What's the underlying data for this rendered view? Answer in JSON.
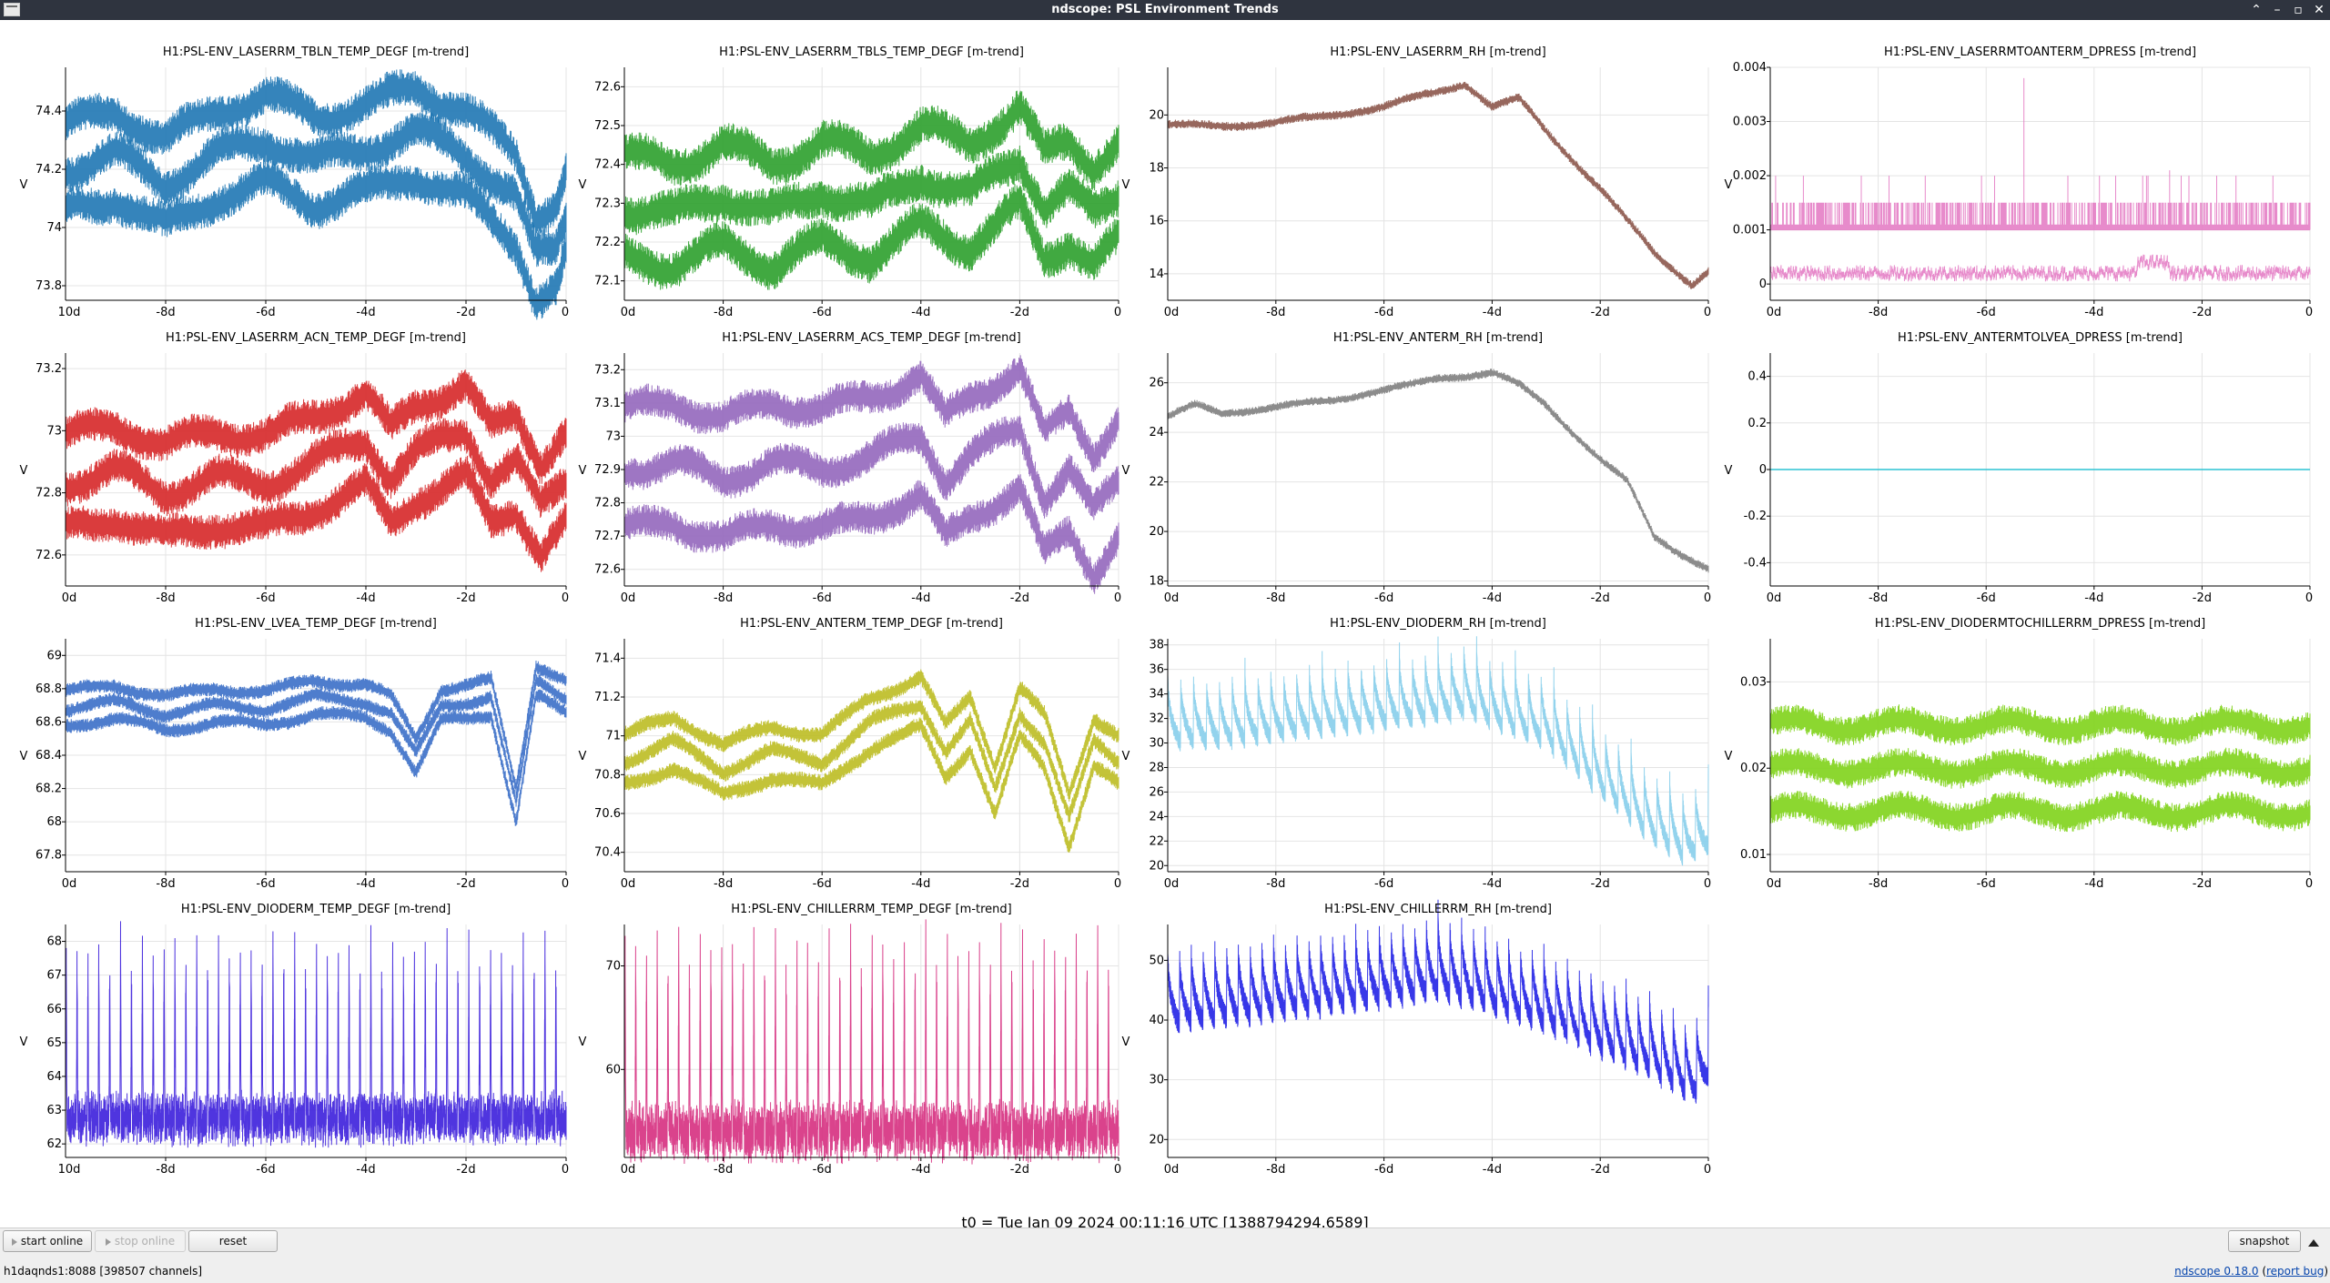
{
  "window": {
    "title": "ndscope: PSL Environment Trends"
  },
  "plots": [
    {
      "title": "H1:PSL-ENV_LASERRM_TBLN_TEMP_DEGF [m-trend]",
      "ylabel": "V",
      "color": "#1f77b4",
      "ylim": [
        73.75,
        74.55
      ],
      "yticks": [
        "73.8",
        "74",
        "74.2",
        "74.4"
      ],
      "ytickvals": [
        73.8,
        74.0,
        74.2,
        74.4
      ],
      "xfirst": "10d",
      "mode": "band",
      "knots": [
        [
          -10,
          74.35
        ],
        [
          -9,
          74.4
        ],
        [
          -8,
          74.3
        ],
        [
          -7,
          74.4
        ],
        [
          -6,
          74.45
        ],
        [
          -5,
          74.38
        ],
        [
          -4,
          74.42
        ],
        [
          -3,
          74.48
        ],
        [
          -2,
          74.4
        ],
        [
          -1,
          74.25
        ],
        [
          -0.6,
          74.05
        ],
        [
          -0.2,
          74.08
        ],
        [
          0,
          74.2
        ]
      ],
      "offsets": [
        0,
        -0.15,
        -0.3
      ],
      "noise": 0.045
    },
    {
      "title": "H1:PSL-ENV_LASERRM_TBLS_TEMP_DEGF [m-trend]",
      "ylabel": "V",
      "color": "#2ca02c",
      "ylim": [
        72.05,
        72.65
      ],
      "yticks": [
        "72.1",
        "72.2",
        "72.3",
        "72.4",
        "72.5",
        "72.6"
      ],
      "ytickvals": [
        72.1,
        72.2,
        72.3,
        72.4,
        72.5,
        72.6
      ],
      "xfirst": "0d",
      "mode": "band",
      "knots": [
        [
          -10,
          72.42
        ],
        [
          -9,
          72.4
        ],
        [
          -8,
          72.45
        ],
        [
          -7,
          72.4
        ],
        [
          -6,
          72.46
        ],
        [
          -5,
          72.42
        ],
        [
          -4,
          72.5
        ],
        [
          -3,
          72.45
        ],
        [
          -2,
          72.55
        ],
        [
          -1.5,
          72.42
        ],
        [
          -1,
          72.46
        ],
        [
          -0.5,
          72.4
        ],
        [
          0,
          72.46
        ]
      ],
      "offsets": [
        0,
        -0.13,
        -0.26
      ],
      "noise": 0.035
    },
    {
      "title": "H1:PSL-ENV_LASERRM_RH [m-trend]",
      "ylabel": "V",
      "color": "#8c564b",
      "ylim": [
        13.0,
        21.8
      ],
      "yticks": [
        "14",
        "16",
        "18",
        "20"
      ],
      "ytickvals": [
        14,
        16,
        18,
        20
      ],
      "xfirst": "0d",
      "mode": "single",
      "knots": [
        [
          -10,
          19.6
        ],
        [
          -9,
          19.6
        ],
        [
          -8,
          19.7
        ],
        [
          -7,
          20.0
        ],
        [
          -6,
          20.3
        ],
        [
          -5,
          20.9
        ],
        [
          -4.5,
          21.2
        ],
        [
          -4,
          20.3
        ],
        [
          -3.5,
          20.6
        ],
        [
          -3,
          19.4
        ],
        [
          -2,
          17.2
        ],
        [
          -1,
          14.8
        ],
        [
          -0.3,
          13.6
        ],
        [
          0,
          14.1
        ]
      ],
      "offsets": [
        0
      ],
      "noise": 0.12
    },
    {
      "title": "H1:PSL-ENV_LASERRMTOANTERM_DPRESS [m-trend]",
      "ylabel": "V",
      "color": "#e377c2",
      "ylim": [
        -0.0003,
        0.004
      ],
      "yticks": [
        "0",
        "0.001",
        "0.002",
        "0.003",
        "0.004"
      ],
      "ytickvals": [
        0,
        0.001,
        0.002,
        0.003,
        0.004
      ],
      "xfirst": "0d",
      "mode": "dpress",
      "knots": [
        [
          -10,
          0.0002
        ],
        [
          0,
          0.0002
        ]
      ],
      "offsets": [
        0
      ],
      "noise": 0.0001
    },
    {
      "title": "H1:PSL-ENV_LASERRM_ACN_TEMP_DEGF [m-trend]",
      "ylabel": "V",
      "color": "#d62728",
      "ylim": [
        72.5,
        73.25
      ],
      "yticks": [
        "72.6",
        "72.8",
        "73",
        "73.2"
      ],
      "ytickvals": [
        72.6,
        72.8,
        73.0,
        73.2
      ],
      "xfirst": "0d",
      "mode": "band",
      "knots": [
        [
          -10,
          72.98
        ],
        [
          -9,
          73.02
        ],
        [
          -8,
          72.95
        ],
        [
          -7,
          73.0
        ],
        [
          -6,
          72.98
        ],
        [
          -5,
          73.05
        ],
        [
          -4,
          73.12
        ],
        [
          -3.5,
          73.0
        ],
        [
          -3,
          73.08
        ],
        [
          -2,
          73.15
        ],
        [
          -1.5,
          73.0
        ],
        [
          -1,
          73.05
        ],
        [
          -0.5,
          72.9
        ],
        [
          0,
          73.0
        ]
      ],
      "offsets": [
        0,
        -0.15,
        -0.3
      ],
      "noise": 0.04
    },
    {
      "title": "H1:PSL-ENV_LASERRM_ACS_TEMP_DEGF [m-trend]",
      "ylabel": "V",
      "color": "#9467bd",
      "ylim": [
        72.55,
        73.25
      ],
      "yticks": [
        "72.6",
        "72.7",
        "72.8",
        "72.9",
        "73",
        "73.1",
        "73.2"
      ],
      "ytickvals": [
        72.6,
        72.7,
        72.8,
        72.9,
        73.0,
        73.1,
        73.2
      ],
      "xfirst": "0d",
      "mode": "band",
      "knots": [
        [
          -10,
          73.08
        ],
        [
          -9,
          73.1
        ],
        [
          -8,
          73.05
        ],
        [
          -7,
          73.1
        ],
        [
          -6,
          73.08
        ],
        [
          -5,
          73.12
        ],
        [
          -4,
          73.18
        ],
        [
          -3.5,
          73.05
        ],
        [
          -3,
          73.12
        ],
        [
          -2,
          73.2
        ],
        [
          -1.5,
          73.0
        ],
        [
          -1,
          73.08
        ],
        [
          -0.5,
          72.95
        ],
        [
          0,
          73.05
        ]
      ],
      "offsets": [
        0,
        -0.18,
        -0.36
      ],
      "noise": 0.035
    },
    {
      "title": "H1:PSL-ENV_ANTERM_RH [m-trend]",
      "ylabel": "V",
      "color": "#7f7f7f",
      "ylim": [
        17.8,
        27.2
      ],
      "yticks": [
        "18",
        "20",
        "22",
        "24",
        "26"
      ],
      "ytickvals": [
        18,
        20,
        22,
        24,
        26
      ],
      "xfirst": "0d",
      "mode": "single",
      "knots": [
        [
          -10,
          24.6
        ],
        [
          -9.5,
          25.1
        ],
        [
          -9,
          24.8
        ],
        [
          -8,
          25.0
        ],
        [
          -7,
          25.3
        ],
        [
          -6,
          25.7
        ],
        [
          -5.5,
          25.9
        ],
        [
          -5,
          26.2
        ],
        [
          -4.5,
          26.3
        ],
        [
          -4,
          26.4
        ],
        [
          -3.5,
          25.9
        ],
        [
          -3,
          25.1
        ],
        [
          -2,
          22.9
        ],
        [
          -1.5,
          22.0
        ],
        [
          -1,
          19.8
        ],
        [
          -0.5,
          19.1
        ],
        [
          0,
          18.5
        ]
      ],
      "offsets": [
        0
      ],
      "noise": 0.12
    },
    {
      "title": "H1:PSL-ENV_ANTERMTOLVEA_DPRESS [m-trend]",
      "ylabel": "V",
      "color": "#17becf",
      "ylim": [
        -0.5,
        0.5
      ],
      "yticks": [
        "-0.4",
        "-0.2",
        "0",
        "0.2",
        "0.4"
      ],
      "ytickvals": [
        -0.4,
        -0.2,
        0,
        0.2,
        0.4
      ],
      "xfirst": "0d",
      "mode": "flat",
      "knots": [
        [
          -10,
          0
        ],
        [
          0,
          0
        ]
      ],
      "offsets": [
        0
      ],
      "noise": 0
    },
    {
      "title": "H1:PSL-ENV_LVEA_TEMP_DEGF [m-trend]",
      "ylabel": "V",
      "color": "#3b6fc8",
      "ylim": [
        67.7,
        69.1
      ],
      "yticks": [
        "67.8",
        "68",
        "68.2",
        "68.4",
        "68.6",
        "68.8",
        "69"
      ],
      "ytickvals": [
        67.8,
        68.0,
        68.2,
        68.4,
        68.6,
        68.8,
        69.0
      ],
      "xfirst": "0d",
      "mode": "band",
      "knots": [
        [
          -10,
          68.78
        ],
        [
          -9,
          68.82
        ],
        [
          -8,
          68.75
        ],
        [
          -7,
          68.8
        ],
        [
          -6,
          68.78
        ],
        [
          -5,
          68.85
        ],
        [
          -4,
          68.82
        ],
        [
          -3.5,
          68.75
        ],
        [
          -3,
          68.5
        ],
        [
          -2.5,
          68.8
        ],
        [
          -2,
          68.82
        ],
        [
          -1.5,
          68.85
        ],
        [
          -1,
          68.2
        ],
        [
          -0.6,
          68.95
        ],
        [
          0,
          68.85
        ]
      ],
      "offsets": [
        0,
        -0.1,
        -0.2
      ],
      "noise": 0.03
    },
    {
      "title": "H1:PSL-ENV_ANTERM_TEMP_DEGF [m-trend]",
      "ylabel": "V",
      "color": "#bcbd22",
      "ylim": [
        70.3,
        71.5
      ],
      "yticks": [
        "70.4",
        "70.6",
        "70.8",
        "71",
        "71.2",
        "71.4"
      ],
      "ytickvals": [
        70.4,
        70.6,
        70.8,
        71.0,
        71.2,
        71.4
      ],
      "xfirst": "0d",
      "mode": "band",
      "knots": [
        [
          -10,
          71.0
        ],
        [
          -9,
          71.1
        ],
        [
          -8,
          70.95
        ],
        [
          -7,
          71.05
        ],
        [
          -6,
          71.0
        ],
        [
          -5,
          71.2
        ],
        [
          -4,
          71.3
        ],
        [
          -3.5,
          71.05
        ],
        [
          -3,
          71.2
        ],
        [
          -2.5,
          70.85
        ],
        [
          -2,
          71.25
        ],
        [
          -1.5,
          71.1
        ],
        [
          -1,
          70.7
        ],
        [
          -0.5,
          71.1
        ],
        [
          0,
          71.0
        ]
      ],
      "offsets": [
        0,
        -0.13,
        -0.26
      ],
      "noise": 0.03
    },
    {
      "title": "H1:PSL-ENV_DIODERM_RH [m-trend]",
      "ylabel": "V",
      "color": "#87ceeb",
      "ylim": [
        19.5,
        38.5
      ],
      "yticks": [
        "20",
        "22",
        "24",
        "26",
        "28",
        "30",
        "32",
        "34",
        "36",
        "38"
      ],
      "ytickvals": [
        20,
        22,
        24,
        26,
        28,
        30,
        32,
        34,
        36,
        38
      ],
      "xfirst": "0d",
      "mode": "saw",
      "knots": [
        [
          -10,
          33
        ],
        [
          -9,
          33
        ],
        [
          -8,
          33.5
        ],
        [
          -7,
          34
        ],
        [
          -6,
          34.5
        ],
        [
          -5,
          35
        ],
        [
          -4.5,
          35.5
        ],
        [
          -4,
          34.5
        ],
        [
          -3,
          33
        ],
        [
          -2,
          29
        ],
        [
          -1,
          25
        ],
        [
          -0.4,
          23.5
        ],
        [
          0,
          24.5
        ]
      ],
      "offsets": [
        0
      ],
      "noise": 0.4,
      "cycles": 42,
      "depth": 6
    },
    {
      "title": "H1:PSL-ENV_DIODERMTOCHILLERRM_DPRESS [m-trend]",
      "ylabel": "V",
      "color": "#7fd31a",
      "ylim": [
        0.008,
        0.035
      ],
      "yticks": [
        "0.01",
        "0.02",
        "0.03"
      ],
      "ytickvals": [
        0.01,
        0.02,
        0.03
      ],
      "xfirst": "0d",
      "mode": "band",
      "knots": [
        [
          -10,
          0.025
        ],
        [
          0,
          0.025
        ]
      ],
      "offsets": [
        0,
        -0.005,
        -0.01
      ],
      "noise": 0.0012
    },
    {
      "title": "H1:PSL-ENV_DIODERM_TEMP_DEGF [m-trend]",
      "ylabel": "V",
      "color": "#3c1fdc",
      "ylim": [
        61.6,
        68.5
      ],
      "yticks": [
        "62",
        "63",
        "64",
        "65",
        "66",
        "67",
        "68"
      ],
      "ytickvals": [
        62,
        63,
        64,
        65,
        66,
        67,
        68
      ],
      "xfirst": "10d",
      "mode": "spike",
      "knots": [
        [
          -10,
          62.6
        ],
        [
          0,
          62.6
        ]
      ],
      "offsets": [
        0
      ],
      "noise": 0.35,
      "cycles": 46,
      "peak": 68.1
    },
    {
      "title": "H1:PSL-ENV_CHILLERRM_TEMP_DEGF [m-trend]",
      "ylabel": "V",
      "color": "#d62f7f",
      "ylim": [
        51.5,
        74.0
      ],
      "yticks": [
        "60",
        "70"
      ],
      "ytickvals": [
        60,
        70
      ],
      "xfirst": "0d",
      "mode": "spike",
      "knots": [
        [
          -10,
          53.5
        ],
        [
          0,
          53.5
        ]
      ],
      "offsets": [
        0
      ],
      "noise": 1.3,
      "cycles": 46,
      "peak": 73.0
    },
    {
      "title": "H1:PSL-ENV_CHILLERRM_RH [m-trend]",
      "ylabel": "V",
      "color": "#2222e6",
      "ylim": [
        17.0,
        56.0
      ],
      "yticks": [
        "20",
        "30",
        "40",
        "50"
      ],
      "ytickvals": [
        20,
        30,
        40,
        50
      ],
      "xfirst": "0d",
      "mode": "saw",
      "knots": [
        [
          -10,
          46
        ],
        [
          -9,
          47
        ],
        [
          -8,
          48
        ],
        [
          -7,
          49
        ],
        [
          -6,
          50
        ],
        [
          -5,
          51.5
        ],
        [
          -4.5,
          50.5
        ],
        [
          -4,
          49
        ],
        [
          -3,
          46
        ],
        [
          -2,
          42
        ],
        [
          -1,
          38
        ],
        [
          -0.3,
          34
        ],
        [
          0,
          37
        ]
      ],
      "offsets": [
        0
      ],
      "noise": 1.0,
      "cycles": 46,
      "depth": 14
    }
  ],
  "xticks": [
    "-8d",
    "-6d",
    "-4d",
    "-2d",
    "0"
  ],
  "xtickvals": [
    -8,
    -6,
    -4,
    -2,
    0
  ],
  "t0": "t0 = Tue Jan 09 2024 00:11:16 UTC [1388794294.6589]",
  "buttons": {
    "start_online": "start online",
    "stop_online": "stop online",
    "reset": "reset",
    "snapshot": "snapshot"
  },
  "status": "h1daqnds1:8088  [398507 channels]",
  "version": {
    "name": "ndscope 0.18.0",
    "report": "report bug"
  },
  "colors": {
    "titlebar": "#2f343f",
    "grid": "#e4e4e4"
  }
}
